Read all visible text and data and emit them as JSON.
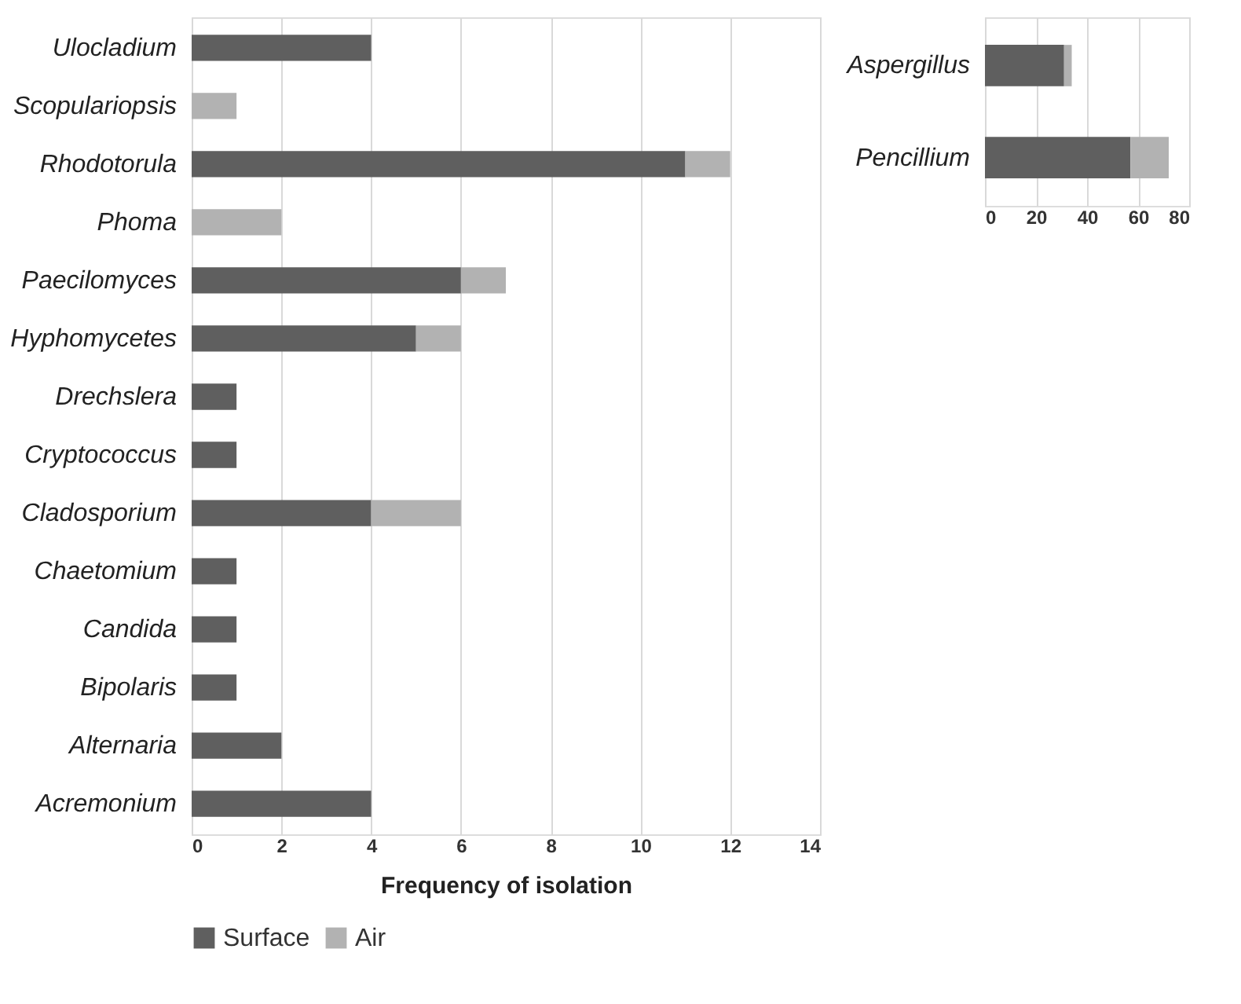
{
  "chart_data": [
    {
      "type": "bar",
      "orientation": "horizontal",
      "stacked": true,
      "xlabel": "Frequency of isolation",
      "categories": [
        "Ulocladium",
        "Scopulariopsis",
        "Rhodotorula",
        "Phoma",
        "Paecilomyces",
        "Hyphomycetes",
        "Drechslera",
        "Cryptococcus",
        "Cladosporium",
        "Chaetomium",
        "Candida",
        "Bipolaris",
        "Alternaria",
        "Acremonium"
      ],
      "series": [
        {
          "name": "Surface",
          "color": "#5f5f5f",
          "values": [
            4,
            null,
            11,
            null,
            6,
            5,
            1,
            1,
            4,
            1,
            1,
            1,
            2,
            4
          ]
        },
        {
          "name": "Air",
          "color": "#b2b2b2",
          "values": [
            null,
            1,
            1,
            2,
            1,
            1,
            null,
            null,
            2,
            null,
            null,
            null,
            null,
            null
          ]
        }
      ],
      "xlim": [
        0,
        14
      ],
      "xticks": [
        0,
        2,
        4,
        6,
        8,
        10,
        12,
        14
      ],
      "grid": "x",
      "legend": "bottom"
    },
    {
      "type": "bar",
      "orientation": "horizontal",
      "stacked": true,
      "categories": [
        "Aspergillus",
        "Pencillium"
      ],
      "series": [
        {
          "color": "#5f5f5f",
          "values": [
            31,
            57
          ]
        },
        {
          "color": "#b2b2b2",
          "values": [
            3,
            15
          ]
        }
      ],
      "xlim": [
        0,
        80
      ],
      "xticks": [
        0,
        20,
        40,
        60,
        80
      ],
      "grid": "x"
    }
  ]
}
